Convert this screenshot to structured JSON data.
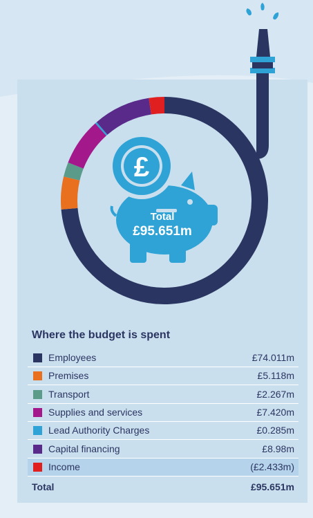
{
  "chart_data": {
    "type": "pie",
    "title": "Where the budget is spent",
    "center_label": "Total",
    "center_value": "£95.651m",
    "series": [
      {
        "name": "Employees",
        "value": 74.011,
        "display": "£74.011m",
        "color": "#2b3561"
      },
      {
        "name": "Premises",
        "value": 5.118,
        "display": "£5.118m",
        "color": "#e8701f"
      },
      {
        "name": "Transport",
        "value": 2.267,
        "display": "£2.267m",
        "color": "#5a9b8a"
      },
      {
        "name": "Supplies and services",
        "value": 7.42,
        "display": "£7.420m",
        "color": "#a3198c"
      },
      {
        "name": "Lead Authority Charges",
        "value": 0.285,
        "display": "£0.285m",
        "color": "#2fa3d6"
      },
      {
        "name": "Capital financing",
        "value": 8.98,
        "display": "£8.98m",
        "color": "#5a2a8a"
      },
      {
        "name": "Income",
        "value": -2.433,
        "display": "(£2.433m)",
        "color": "#e02020"
      }
    ],
    "total_label": "Total",
    "total_value": "£95.651m"
  },
  "legend_rows": [
    {
      "label": "Employees",
      "value": "£74.011m"
    },
    {
      "label": "Premises",
      "value": "£5.118m"
    },
    {
      "label": "Transport",
      "value": "£2.267m"
    },
    {
      "label": "Supplies and services",
      "value": "£7.420m"
    },
    {
      "label": "Lead Authority Charges",
      "value": "£0.285m"
    },
    {
      "label": "Capital financing",
      "value": "£8.98m"
    },
    {
      "label": "Income",
      "value": "(£2.433m)"
    }
  ],
  "colors": {
    "navy": "#2b3561",
    "piggy": "#2fa3d6",
    "panel": "#c9dfee"
  },
  "icons": [
    "piggy-bank-icon",
    "pound-coin-icon",
    "pipe-tap-icon",
    "water-drops-icon"
  ]
}
